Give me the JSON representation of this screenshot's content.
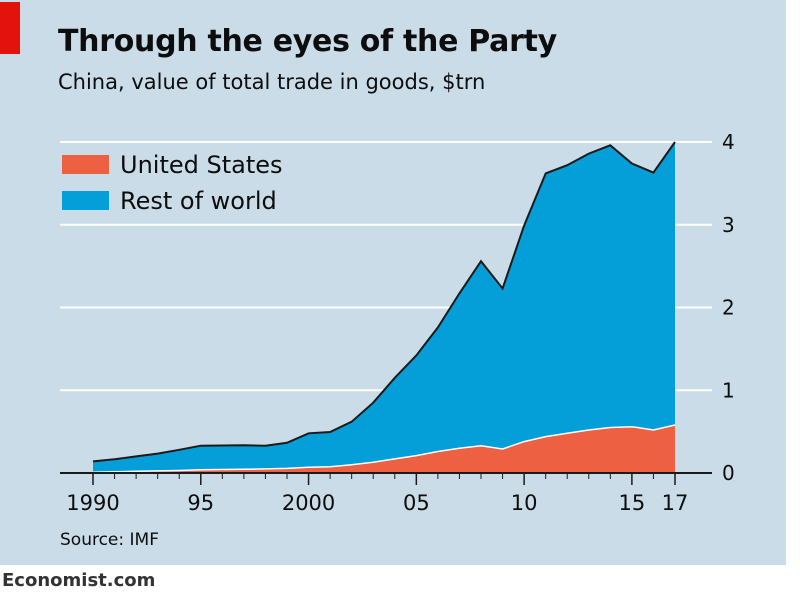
{
  "title": "Through the eyes of the Party",
  "subtitle": "China, value of total trade in goods, $trn",
  "source": "Source: IMF",
  "footer": "Economist.com",
  "colors": {
    "background": "#c9dce7",
    "united_states": "#ed6142",
    "rest_of_world": "#049fd9",
    "accent": "#e3120b"
  },
  "chart_data": {
    "type": "area",
    "stacked": true,
    "x": [
      1990,
      1991,
      1992,
      1993,
      1994,
      1995,
      1996,
      1997,
      1998,
      1999,
      2000,
      2001,
      2002,
      2003,
      2004,
      2005,
      2006,
      2007,
      2008,
      2009,
      2010,
      2011,
      2012,
      2013,
      2014,
      2015,
      2016,
      2017
    ],
    "x_tick_values": [
      1990,
      1995,
      2000,
      2005,
      2010,
      2015,
      2017
    ],
    "x_tick_labels": [
      "1990",
      "95",
      "2000",
      "05",
      "10",
      "15",
      "17"
    ],
    "y_ticks": [
      0,
      1,
      2,
      3,
      4
    ],
    "ylim": [
      0,
      4
    ],
    "y_axis_side": "right",
    "grid": true,
    "legend_position": "top-left",
    "series": [
      {
        "name": "United States",
        "color": "#ed6142",
        "values": [
          0.01,
          0.015,
          0.02,
          0.025,
          0.03,
          0.04,
          0.042,
          0.045,
          0.05,
          0.055,
          0.07,
          0.075,
          0.1,
          0.13,
          0.17,
          0.21,
          0.26,
          0.3,
          0.33,
          0.29,
          0.38,
          0.44,
          0.48,
          0.52,
          0.55,
          0.56,
          0.52,
          0.58
        ]
      },
      {
        "name": "Rest of world",
        "color": "#049fd9",
        "values": [
          0.13,
          0.15,
          0.18,
          0.21,
          0.25,
          0.29,
          0.29,
          0.29,
          0.28,
          0.31,
          0.41,
          0.42,
          0.52,
          0.72,
          0.98,
          1.21,
          1.5,
          1.87,
          2.23,
          1.94,
          2.61,
          3.18,
          3.24,
          3.34,
          3.41,
          3.18,
          3.11,
          3.42
        ]
      }
    ]
  }
}
